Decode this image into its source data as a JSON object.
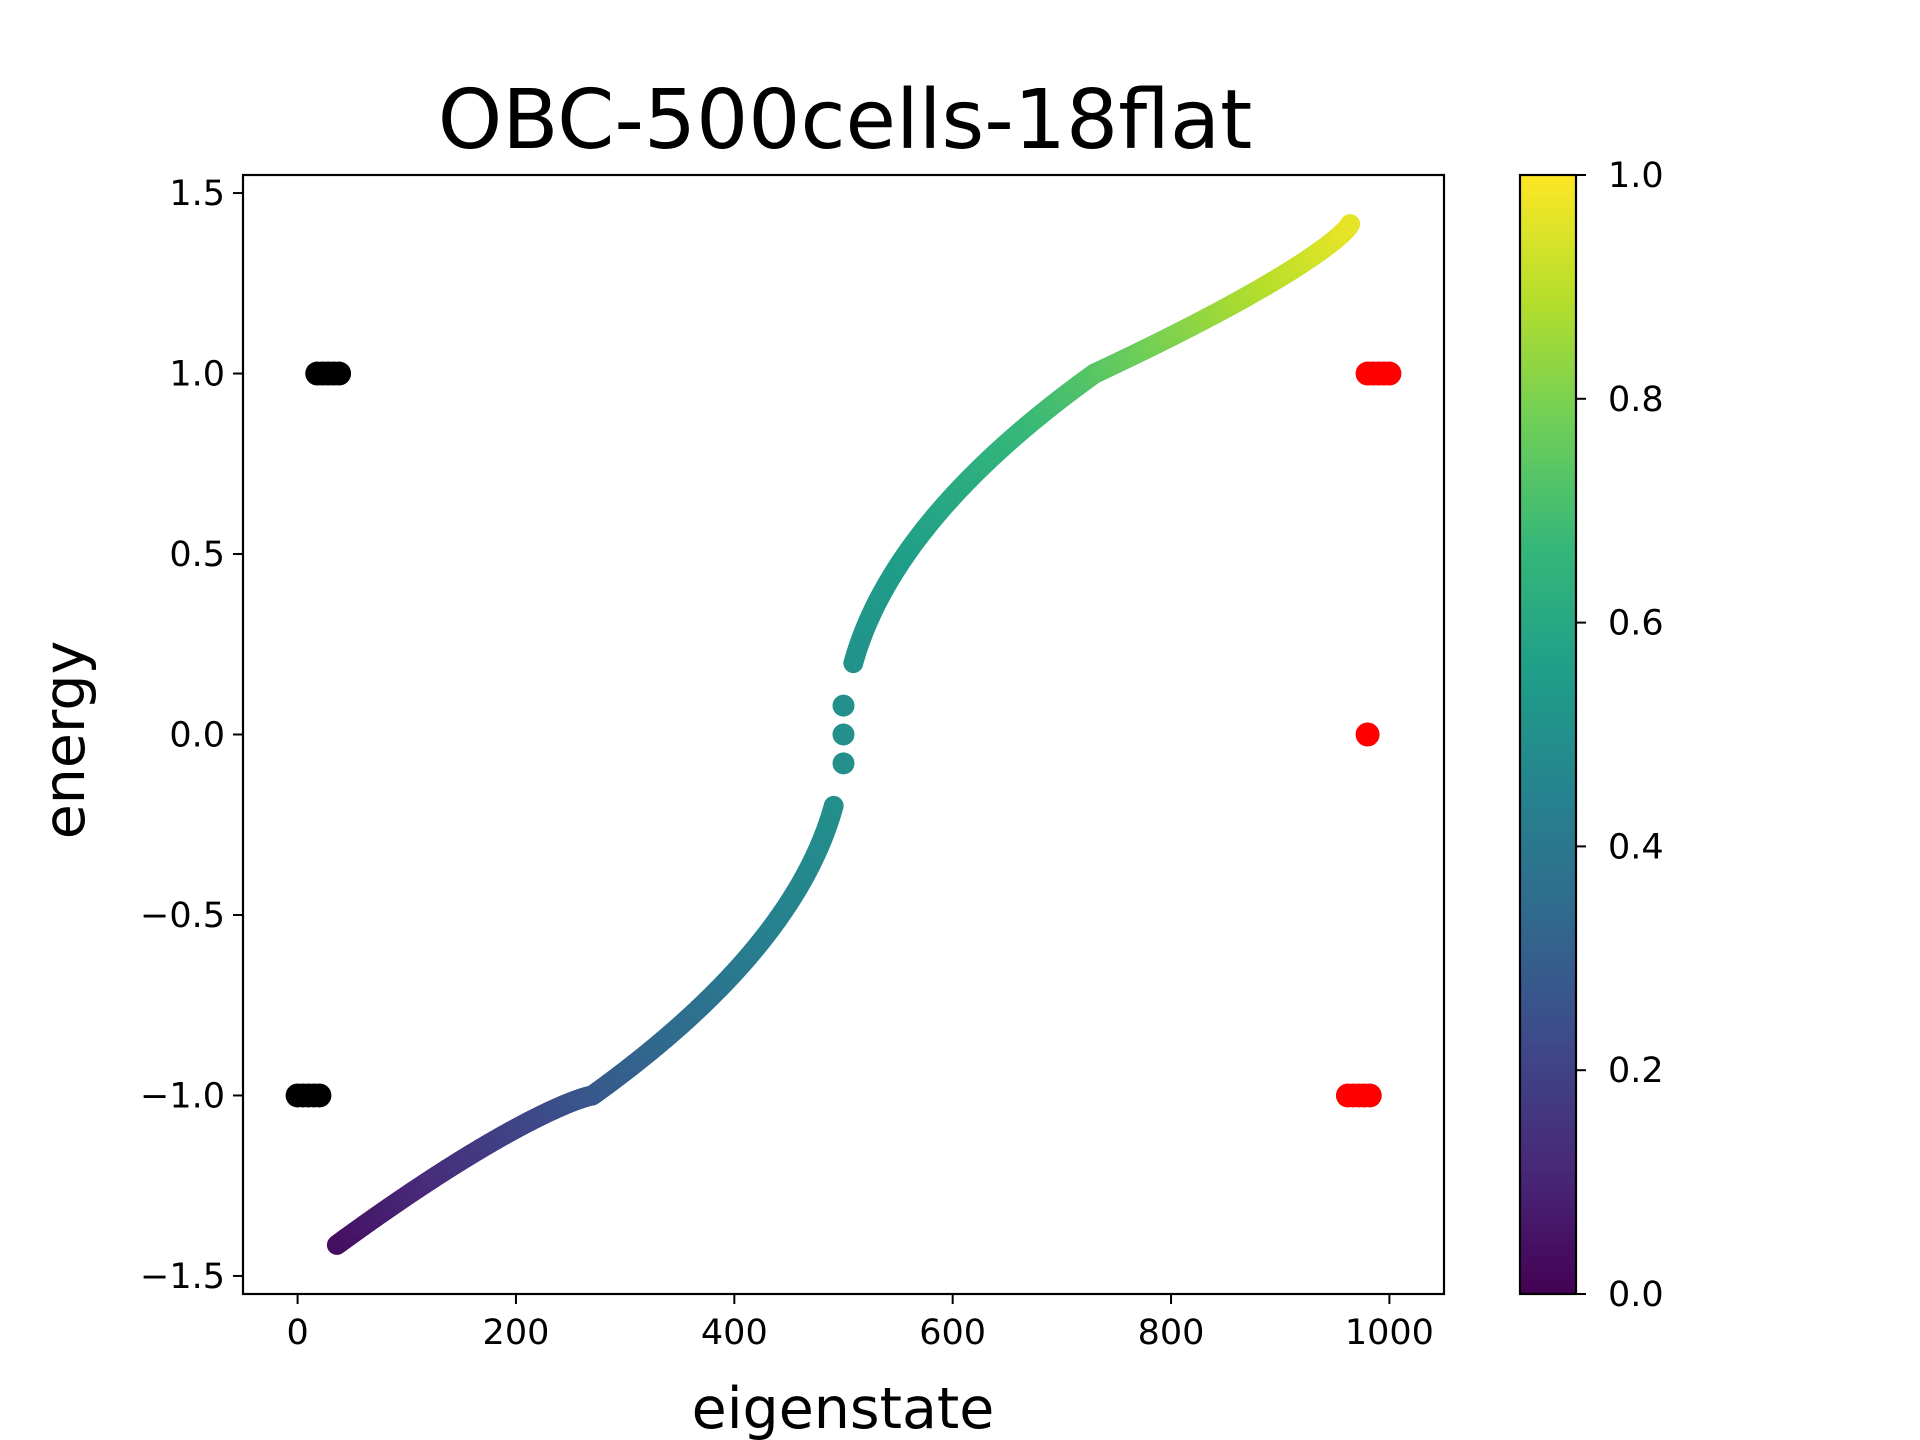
{
  "chart_data": {
    "type": "scatter",
    "title": "OBC-500cells-18flat",
    "xlabel": "eigenstate",
    "ylabel": "energy",
    "xlim": [
      -50,
      1050
    ],
    "ylim": [
      -1.55,
      1.55
    ],
    "xticks": [
      0,
      200,
      400,
      600,
      800,
      1000
    ],
    "xtick_labels": [
      "0",
      "200",
      "400",
      "600",
      "800",
      "1000"
    ],
    "yticks": [
      -1.5,
      -1.0,
      -0.5,
      0.0,
      0.5,
      1.0,
      1.5
    ],
    "ytick_labels": [
      "−1.5",
      "−1.0",
      "−0.5",
      "0.0",
      "0.5",
      "1.0",
      "1.5"
    ],
    "grid": false,
    "main_series": {
      "color_by": "normalized eigenstate index",
      "colormap": "viridis",
      "x_range": [
        36,
        964
      ],
      "y_start": -1.414,
      "y_end": 1.414,
      "kinks": [
        [
          270,
          -1.0
        ],
        [
          730,
          1.0
        ]
      ],
      "center_points": [
        [
          500,
          -0.08
        ],
        [
          500,
          0.0
        ],
        [
          500,
          0.08
        ]
      ]
    },
    "series": [
      {
        "color": "#000000",
        "points": [
          [
            0,
            -1.0
          ],
          [
            5,
            -1.0
          ],
          [
            10,
            -1.0
          ],
          [
            15,
            -1.0
          ],
          [
            20,
            -1.0
          ],
          [
            18,
            1.0
          ],
          [
            23,
            1.0
          ],
          [
            28,
            1.0
          ],
          [
            33,
            1.0
          ],
          [
            38,
            1.0
          ]
        ]
      },
      {
        "color": "#ff0000",
        "points": [
          [
            962,
            -1.0
          ],
          [
            967,
            -1.0
          ],
          [
            972,
            -1.0
          ],
          [
            977,
            -1.0
          ],
          [
            982,
            -1.0
          ],
          [
            980,
            0.0
          ],
          [
            980,
            1.0
          ],
          [
            985,
            1.0
          ],
          [
            990,
            1.0
          ],
          [
            995,
            1.0
          ],
          [
            1000,
            1.0
          ]
        ]
      }
    ],
    "colorbar": {
      "colormap": "viridis",
      "range": [
        0.0,
        1.0
      ],
      "ticks": [
        0.0,
        0.2,
        0.4,
        0.6,
        0.8,
        1.0
      ],
      "tick_labels": [
        "0.0",
        "0.2",
        "0.4",
        "0.6",
        "0.8",
        "1.0"
      ],
      "stops": [
        "#440154",
        "#482878",
        "#3e4989",
        "#31688e",
        "#26828e",
        "#1f9e89",
        "#35b779",
        "#6ece58",
        "#b5de2b",
        "#fde725"
      ]
    }
  }
}
